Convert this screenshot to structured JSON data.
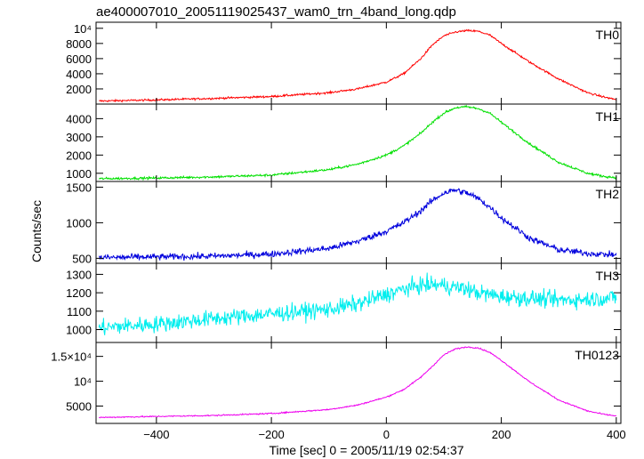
{
  "chart_data": {
    "type": "line",
    "title": "ae400007010_20051119025437_wam0_trn_4band_long.qdp",
    "xlabel": "Time [sec] 0 = 2005/11/19 02:54:37",
    "ylabel": "Counts/sec",
    "xlim": [
      -505,
      408
    ],
    "x_ticks": [
      -400,
      -200,
      0,
      200,
      400
    ],
    "x_tick_labels": [
      "−400",
      "−200",
      "0",
      "200",
      "400"
    ],
    "panels": [
      {
        "label": "TH0",
        "color": "#ff0000",
        "ylim": [
          0,
          10800
        ],
        "y_ticks": [
          2000,
          4000,
          6000,
          8000,
          10000
        ],
        "y_tick_labels": [
          "2000",
          "4000",
          "6000",
          "8000",
          "10⁴"
        ],
        "noise": 90,
        "x": [
          -500,
          -400,
          -300,
          -200,
          -100,
          -50,
          0,
          30,
          60,
          80,
          100,
          120,
          140,
          160,
          180,
          200,
          250,
          300,
          350,
          380,
          400
        ],
        "y": [
          400,
          550,
          750,
          1000,
          1500,
          2000,
          2900,
          4000,
          6000,
          7800,
          9000,
          9500,
          9700,
          9600,
          9100,
          8000,
          5500,
          3300,
          1500,
          900,
          600
        ]
      },
      {
        "label": "TH1",
        "color": "#00e000",
        "ylim": [
          550,
          4800
        ],
        "y_ticks": [
          1000,
          2000,
          3000,
          4000
        ],
        "y_tick_labels": [
          "1000",
          "2000",
          "3000",
          "4000"
        ],
        "noise": 45,
        "x": [
          -500,
          -400,
          -300,
          -200,
          -100,
          -50,
          0,
          30,
          60,
          80,
          100,
          120,
          140,
          160,
          180,
          200,
          250,
          300,
          350,
          380,
          400
        ],
        "y": [
          700,
          740,
          800,
          900,
          1200,
          1500,
          2000,
          2500,
          3200,
          3800,
          4300,
          4600,
          4650,
          4550,
          4300,
          3800,
          2600,
          1600,
          1000,
          820,
          760
        ]
      },
      {
        "label": "TH2",
        "color": "#0000dd",
        "ylim": [
          430,
          1580
        ],
        "y_ticks": [
          500,
          1000,
          1500
        ],
        "y_tick_labels": [
          "500",
          "1000",
          "1500"
        ],
        "noise": 32,
        "x": [
          -500,
          -400,
          -300,
          -200,
          -100,
          -50,
          0,
          30,
          60,
          80,
          100,
          120,
          140,
          160,
          180,
          200,
          250,
          300,
          350,
          380,
          400
        ],
        "y": [
          510,
          520,
          530,
          560,
          640,
          740,
          880,
          1000,
          1170,
          1310,
          1420,
          1460,
          1420,
          1340,
          1220,
          1070,
          780,
          620,
          570,
          555,
          550
        ]
      },
      {
        "label": "TH3",
        "color": "#00eeee",
        "ylim": [
          930,
          1360
        ],
        "y_ticks": [
          1000,
          1100,
          1200,
          1300
        ],
        "y_tick_labels": [
          "1000",
          "1100",
          "1200",
          "1300"
        ],
        "noise": 32,
        "x": [
          -500,
          -400,
          -300,
          -200,
          -100,
          -50,
          0,
          30,
          60,
          80,
          100,
          120,
          140,
          160,
          180,
          200,
          250,
          300,
          350,
          380,
          400
        ],
        "y": [
          1010,
          1030,
          1060,
          1085,
          1110,
          1140,
          1190,
          1220,
          1240,
          1245,
          1240,
          1230,
          1220,
          1200,
          1190,
          1180,
          1170,
          1160,
          1165,
          1170,
          1175
        ]
      },
      {
        "label": "TH0123",
        "color": "#ee00ee",
        "ylim": [
          1500,
          17800
        ],
        "y_ticks": [
          5000,
          10000,
          15000
        ],
        "y_tick_labels": [
          "5000",
          "10⁴",
          "1.5×10⁴"
        ],
        "noise": 90,
        "x": [
          -500,
          -400,
          -300,
          -200,
          -100,
          -50,
          0,
          30,
          60,
          80,
          100,
          120,
          140,
          160,
          180,
          200,
          250,
          300,
          350,
          380,
          400
        ],
        "y": [
          2700,
          2900,
          3100,
          3500,
          4300,
          5200,
          6800,
          8300,
          10800,
          13000,
          15300,
          16500,
          16900,
          16700,
          15800,
          14200,
          9800,
          6200,
          4000,
          3300,
          3000
        ]
      }
    ]
  }
}
